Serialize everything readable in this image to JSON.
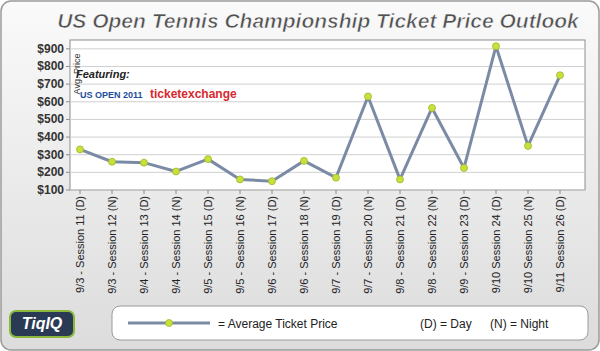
{
  "chart_data": {
    "type": "line",
    "title": "US Open Tennis Championship Ticket Price Outlook",
    "y_label": "Avg. Price",
    "categories": [
      "9/3 - Session 11 (D)",
      "9/3 - Session 12 (N)",
      "9/4 - Session 13 (D)",
      "9/4 - Session 14 (N)",
      "9/5 - Session 15 (D)",
      "9/5 - Session 16 (N)",
      "9/6 - Session 17 (D)",
      "9/6 - Session 18 (N)",
      "9/7 - Session 19 (D)",
      "9/7 - Session 20 (N)",
      "9/8 - Session 21 (D)",
      "9/8 - Session 22 (N)",
      "9/9 - Session 23 (D)",
      "9/10 Session 24 (D)",
      "9/10 Session 25 (N)",
      "9/11 Session 26 (D)"
    ],
    "series": [
      {
        "name": "= Average Ticket Price",
        "color": "#7b8ba6",
        "marker": "circle",
        "values": [
          330,
          260,
          255,
          205,
          275,
          160,
          150,
          265,
          170,
          630,
          160,
          565,
          225,
          915,
          350,
          750
        ]
      }
    ],
    "ylim": [
      100,
      950
    ],
    "yticks": [
      {
        "value": 100,
        "label": "$100"
      },
      {
        "value": 200,
        "label": "$200"
      },
      {
        "value": 300,
        "label": "$300"
      },
      {
        "value": 400,
        "label": "$400"
      },
      {
        "value": 500,
        "label": "$500"
      },
      {
        "value": 600,
        "label": "$600"
      },
      {
        "value": 700,
        "label": "$700"
      },
      {
        "value": 800,
        "label": "$800"
      },
      {
        "value": 900,
        "label": "$900"
      }
    ],
    "grid": true,
    "legend": "bottom",
    "annotations": [
      "Featuring:",
      "US OPEN 2011",
      "ticketexchange",
      "(D) = Day",
      "(N) = Night",
      "TiqIQ"
    ]
  }
}
